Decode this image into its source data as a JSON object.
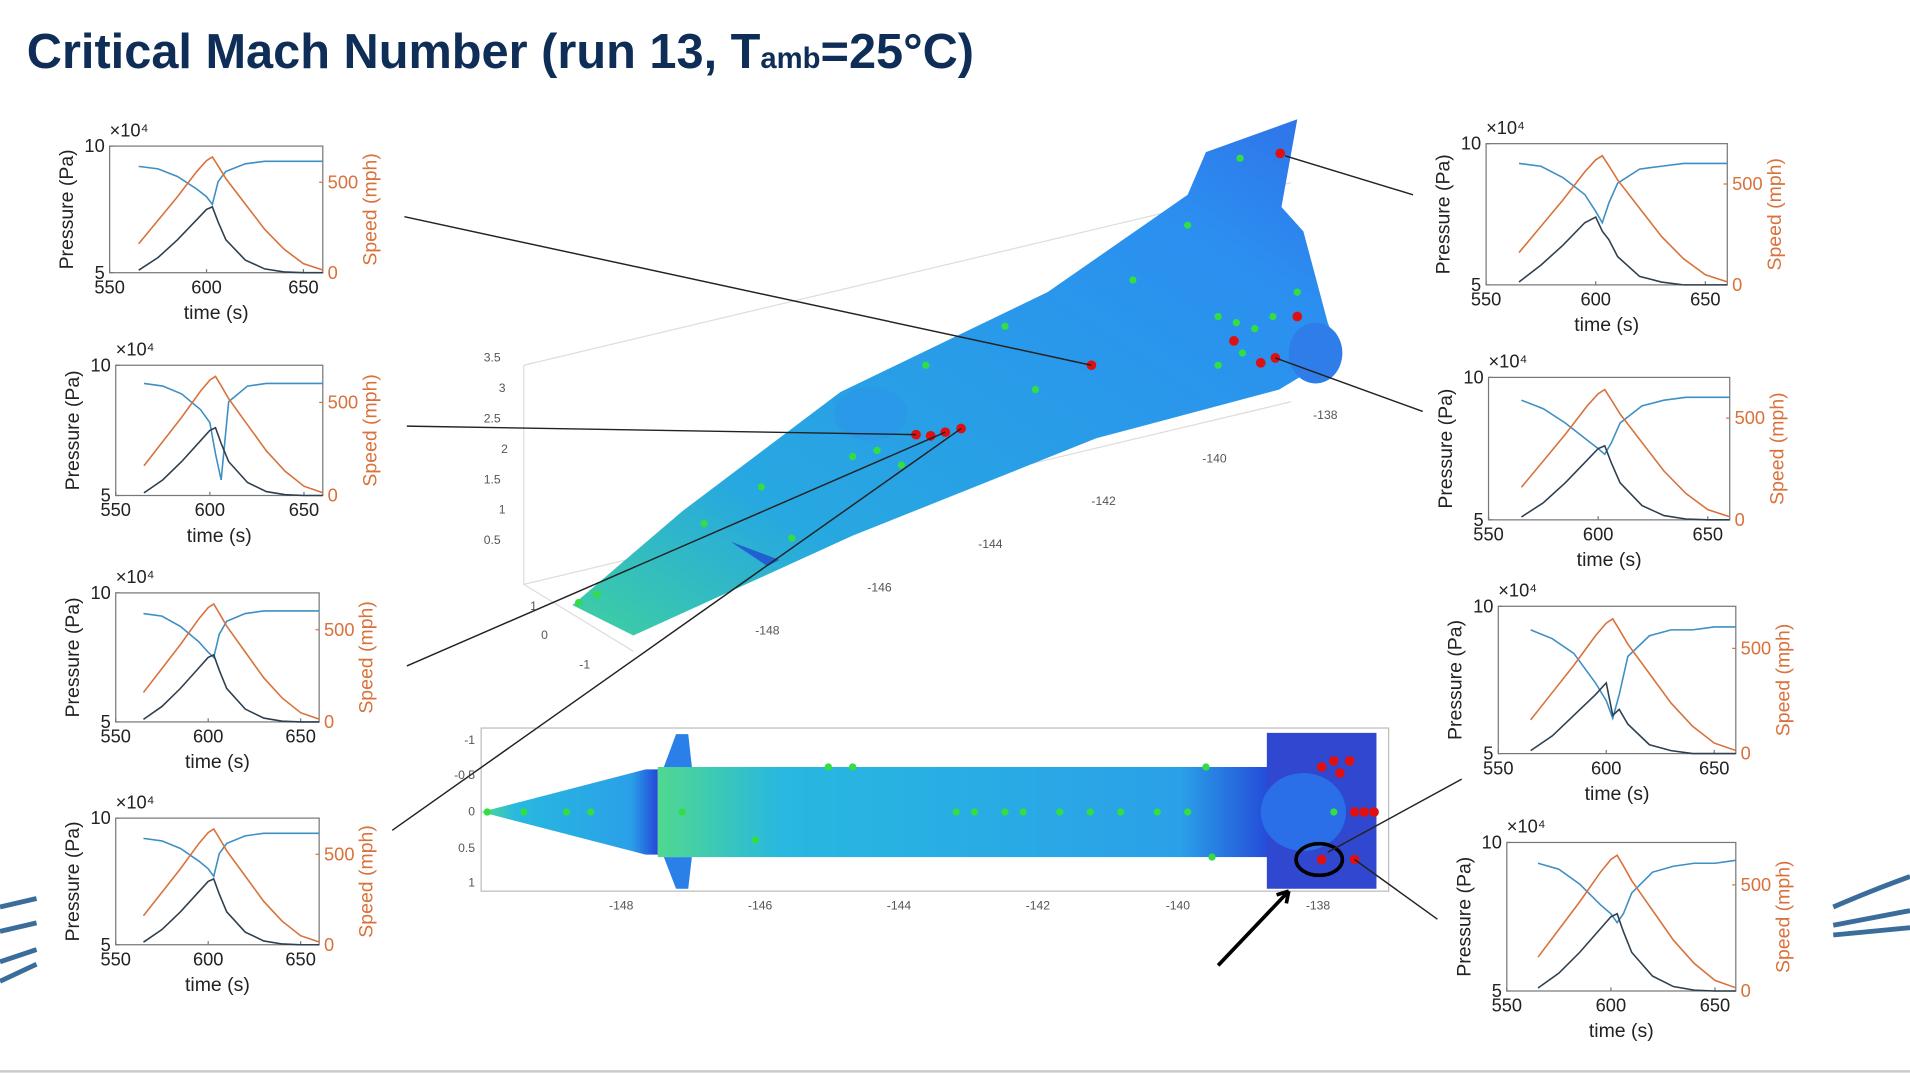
{
  "slide_title": [
    "Critical Mach Number (run 13, T",
    "amb",
    "=25°C)"
  ],
  "views": {
    "iso_z_ticks": [
      3.5,
      3,
      2.5,
      2,
      1.5,
      1,
      0.5
    ],
    "iso_y_ticks": [
      1,
      0,
      -1
    ],
    "iso_x_ticks": [
      -138,
      -140,
      -142,
      -144,
      -146,
      -148
    ],
    "top_y_ticks": [
      -1,
      -0.5,
      0,
      0.5,
      1
    ],
    "top_x_ticks": [
      -148,
      -146,
      -144,
      -142,
      -140,
      -138
    ]
  },
  "chart_data": [
    {
      "type": "line",
      "xlabel": "time (s)",
      "ylabel": "Pressure (Pa)",
      "y2label": "Speed (mph)",
      "y_scale": "×10⁴",
      "xlim": [
        550,
        660
      ],
      "xticks": [
        550,
        600,
        650
      ],
      "ylim": [
        5,
        10
      ],
      "yticks": [
        5,
        10
      ],
      "y2lim": [
        0,
        700
      ],
      "y2ticks": [
        0,
        500
      ],
      "x": [
        565,
        575,
        585,
        595,
        600,
        603,
        606,
        610,
        620,
        630,
        640,
        650,
        660
      ],
      "series": [
        {
          "color": "#3d8fc4",
          "values": [
            9.2,
            9.1,
            8.8,
            8.3,
            8.0,
            7.7,
            8.6,
            9.0,
            9.3,
            9.4,
            9.4,
            9.4,
            9.4
          ]
        },
        {
          "color": "#d9713b",
          "axis": "y2",
          "values": [
            160,
            290,
            420,
            560,
            620,
            640,
            590,
            520,
            380,
            240,
            130,
            50,
            15
          ]
        },
        {
          "color": "#2e3f4f",
          "values": [
            5.1,
            5.6,
            6.3,
            7.1,
            7.5,
            7.6,
            7.0,
            6.3,
            5.5,
            5.15,
            5.03,
            5.0,
            5.0
          ]
        }
      ]
    },
    {
      "type": "line",
      "xlabel": "time (s)",
      "ylabel": "Pressure (Pa)",
      "y2label": "Speed (mph)",
      "y_scale": "×10⁴",
      "xlim": [
        550,
        660
      ],
      "xticks": [
        550,
        600,
        650
      ],
      "ylim": [
        5,
        10
      ],
      "yticks": [
        5,
        10
      ],
      "y2lim": [
        0,
        700
      ],
      "y2ticks": [
        0,
        500
      ],
      "x": [
        565,
        575,
        585,
        595,
        600,
        603,
        606,
        610,
        620,
        630,
        640,
        650,
        660
      ],
      "series": [
        {
          "color": "#3d8fc4",
          "values": [
            9.3,
            9.2,
            8.9,
            8.3,
            7.8,
            6.6,
            5.6,
            8.6,
            9.2,
            9.3,
            9.3,
            9.3,
            9.3
          ]
        },
        {
          "color": "#d9713b",
          "axis": "y2",
          "values": [
            160,
            290,
            420,
            560,
            620,
            640,
            590,
            520,
            380,
            240,
            130,
            50,
            15
          ]
        },
        {
          "color": "#2e3f4f",
          "values": [
            5.1,
            5.6,
            6.3,
            7.1,
            7.5,
            7.6,
            7.0,
            6.3,
            5.5,
            5.15,
            5.03,
            5.0,
            5.0
          ]
        }
      ]
    },
    {
      "type": "line",
      "xlabel": "time (s)",
      "ylabel": "Pressure (Pa)",
      "y2label": "Speed (mph)",
      "y_scale": "×10⁴",
      "xlim": [
        550,
        660
      ],
      "xticks": [
        550,
        600,
        650
      ],
      "ylim": [
        5,
        10
      ],
      "yticks": [
        5,
        10
      ],
      "y2lim": [
        0,
        700
      ],
      "y2ticks": [
        0,
        500
      ],
      "x": [
        565,
        575,
        585,
        595,
        600,
        603,
        606,
        610,
        620,
        630,
        640,
        650,
        660
      ],
      "series": [
        {
          "color": "#3d8fc4",
          "values": [
            9.2,
            9.1,
            8.7,
            8.1,
            7.7,
            7.5,
            8.4,
            8.9,
            9.2,
            9.3,
            9.3,
            9.3,
            9.3
          ]
        },
        {
          "color": "#d9713b",
          "axis": "y2",
          "values": [
            160,
            290,
            420,
            560,
            620,
            640,
            590,
            520,
            380,
            240,
            130,
            50,
            15
          ]
        },
        {
          "color": "#2e3f4f",
          "values": [
            5.1,
            5.6,
            6.3,
            7.1,
            7.5,
            7.6,
            7.0,
            6.3,
            5.5,
            5.15,
            5.03,
            5.0,
            5.0
          ]
        }
      ]
    },
    {
      "type": "line",
      "xlabel": "time (s)",
      "ylabel": "Pressure (Pa)",
      "y2label": "Speed (mph)",
      "y_scale": "×10⁴",
      "xlim": [
        550,
        660
      ],
      "xticks": [
        550,
        600,
        650
      ],
      "ylim": [
        5,
        10
      ],
      "yticks": [
        5,
        10
      ],
      "y2lim": [
        0,
        700
      ],
      "y2ticks": [
        0,
        500
      ],
      "x": [
        565,
        575,
        585,
        595,
        600,
        603,
        606,
        610,
        620,
        630,
        640,
        650,
        660
      ],
      "series": [
        {
          "color": "#3d8fc4",
          "values": [
            9.2,
            9.1,
            8.8,
            8.3,
            8.0,
            7.7,
            8.6,
            9.0,
            9.3,
            9.4,
            9.4,
            9.4,
            9.4
          ]
        },
        {
          "color": "#d9713b",
          "axis": "y2",
          "values": [
            160,
            290,
            420,
            560,
            620,
            640,
            590,
            520,
            380,
            240,
            130,
            50,
            15
          ]
        },
        {
          "color": "#2e3f4f",
          "values": [
            5.1,
            5.6,
            6.3,
            7.1,
            7.5,
            7.6,
            7.0,
            6.3,
            5.5,
            5.15,
            5.03,
            5.0,
            5.0
          ]
        }
      ]
    },
    {
      "type": "line",
      "xlabel": "time (s)",
      "ylabel": "Pressure (Pa)",
      "y2label": "Speed (mph)",
      "y_scale": "×10⁴",
      "xlim": [
        550,
        660
      ],
      "xticks": [
        550,
        600,
        650
      ],
      "ylim": [
        5,
        10
      ],
      "yticks": [
        5,
        10
      ],
      "y2lim": [
        0,
        700
      ],
      "y2ticks": [
        0,
        500
      ],
      "x": [
        565,
        575,
        585,
        595,
        600,
        603,
        606,
        610,
        620,
        630,
        640,
        650,
        660
      ],
      "series": [
        {
          "color": "#3d8fc4",
          "values": [
            9.3,
            9.2,
            8.8,
            8.2,
            7.6,
            7.2,
            7.9,
            8.6,
            9.1,
            9.2,
            9.3,
            9.3,
            9.3
          ]
        },
        {
          "color": "#d9713b",
          "axis": "y2",
          "values": [
            160,
            290,
            420,
            560,
            620,
            640,
            590,
            520,
            380,
            240,
            130,
            50,
            15
          ]
        },
        {
          "color": "#2e3f4f",
          "values": [
            5.1,
            5.7,
            6.4,
            7.2,
            7.4,
            6.9,
            6.6,
            6.0,
            5.3,
            5.1,
            5.0,
            5.0,
            5.0
          ]
        }
      ]
    },
    {
      "type": "line",
      "xlabel": "time (s)",
      "ylabel": "Pressure (Pa)",
      "y2label": "Speed (mph)",
      "y_scale": "×10⁴",
      "xlim": [
        550,
        660
      ],
      "xticks": [
        550,
        600,
        650
      ],
      "ylim": [
        5,
        10
      ],
      "yticks": [
        5,
        10
      ],
      "y2lim": [
        0,
        700
      ],
      "y2ticks": [
        0,
        500
      ],
      "x": [
        565,
        575,
        585,
        595,
        600,
        603,
        606,
        610,
        620,
        630,
        640,
        650,
        660
      ],
      "series": [
        {
          "color": "#3d8fc4",
          "values": [
            9.2,
            8.9,
            8.4,
            7.8,
            7.5,
            7.3,
            7.7,
            8.4,
            9.0,
            9.2,
            9.3,
            9.3,
            9.3
          ]
        },
        {
          "color": "#d9713b",
          "axis": "y2",
          "values": [
            160,
            290,
            420,
            560,
            620,
            640,
            590,
            520,
            380,
            240,
            130,
            50,
            15
          ]
        },
        {
          "color": "#2e3f4f",
          "values": [
            5.1,
            5.6,
            6.3,
            7.1,
            7.5,
            7.6,
            7.0,
            6.3,
            5.5,
            5.15,
            5.03,
            5.0,
            5.0
          ]
        }
      ]
    },
    {
      "type": "line",
      "xlabel": "time (s)",
      "ylabel": "Pressure (Pa)",
      "y2label": "Speed (mph)",
      "y_scale": "×10⁴",
      "xlim": [
        550,
        660
      ],
      "xticks": [
        550,
        600,
        650
      ],
      "ylim": [
        5,
        10
      ],
      "yticks": [
        5,
        10
      ],
      "y2lim": [
        0,
        700
      ],
      "y2ticks": [
        0,
        500
      ],
      "x": [
        565,
        575,
        585,
        595,
        600,
        603,
        606,
        610,
        620,
        630,
        640,
        650,
        660
      ],
      "series": [
        {
          "color": "#3d8fc4",
          "values": [
            9.2,
            8.9,
            8.4,
            7.4,
            6.8,
            6.2,
            7.0,
            8.3,
            9.0,
            9.2,
            9.2,
            9.3,
            9.3
          ]
        },
        {
          "color": "#d9713b",
          "axis": "y2",
          "values": [
            160,
            290,
            420,
            560,
            620,
            640,
            590,
            520,
            380,
            240,
            130,
            50,
            15
          ]
        },
        {
          "color": "#2e3f4f",
          "values": [
            5.1,
            5.6,
            6.3,
            7.0,
            7.4,
            6.3,
            6.5,
            6.0,
            5.3,
            5.1,
            5.0,
            5.0,
            5.0
          ]
        }
      ]
    },
    {
      "type": "line",
      "xlabel": "time (s)",
      "ylabel": "Pressure (Pa)",
      "y2label": "Speed (mph)",
      "y_scale": "×10⁴",
      "xlim": [
        550,
        660
      ],
      "xticks": [
        550,
        600,
        650
      ],
      "ylim": [
        5,
        10
      ],
      "yticks": [
        5,
        10
      ],
      "y2lim": [
        0,
        700
      ],
      "y2ticks": [
        0,
        500
      ],
      "x": [
        565,
        575,
        585,
        595,
        600,
        603,
        606,
        610,
        620,
        630,
        640,
        650,
        660
      ],
      "series": [
        {
          "color": "#3d8fc4",
          "values": [
            9.3,
            9.1,
            8.6,
            7.9,
            7.6,
            7.3,
            7.6,
            8.3,
            9.0,
            9.2,
            9.3,
            9.3,
            9.4
          ]
        },
        {
          "color": "#d9713b",
          "axis": "y2",
          "values": [
            160,
            290,
            420,
            560,
            620,
            640,
            590,
            520,
            380,
            240,
            130,
            50,
            15
          ]
        },
        {
          "color": "#2e3f4f",
          "values": [
            5.1,
            5.6,
            6.3,
            7.1,
            7.5,
            7.6,
            7.0,
            6.3,
            5.5,
            5.15,
            5.03,
            5.0,
            5.0
          ]
        }
      ]
    }
  ]
}
